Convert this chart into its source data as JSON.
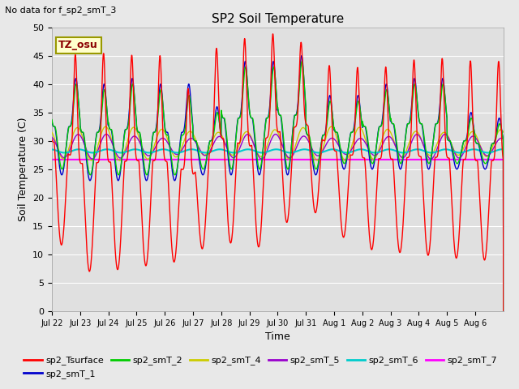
{
  "title": "SP2 Soil Temperature",
  "subtitle": "No data for f_sp2_smT_3",
  "ylabel": "Soil Temperature (C)",
  "xlabel": "Time",
  "tz_label": "TZ_osu",
  "ylim": [
    0,
    50
  ],
  "yticks": [
    0,
    5,
    10,
    15,
    20,
    25,
    30,
    35,
    40,
    45,
    50
  ],
  "fig_bg_color": "#e8e8e8",
  "plot_bg_color": "#e0e0e0",
  "series": {
    "sp2_Tsurface": {
      "color": "#ff0000",
      "lw": 1.0
    },
    "sp2_smT_1": {
      "color": "#0000cc",
      "lw": 1.0
    },
    "sp2_smT_2": {
      "color": "#00cc00",
      "lw": 1.0
    },
    "sp2_smT_4": {
      "color": "#cccc00",
      "lw": 1.0
    },
    "sp2_smT_5": {
      "color": "#9900cc",
      "lw": 1.0
    },
    "sp2_smT_6": {
      "color": "#00cccc",
      "lw": 1.5
    },
    "sp2_smT_7": {
      "color": "#ff00ff",
      "lw": 1.5
    }
  },
  "n_days": 16,
  "x_tick_labels": [
    "Jul 22",
    "Jul 23",
    "Jul 24",
    "Jul 25",
    "Jul 26",
    "Jul 27",
    "Jul 28",
    "Jul 29",
    "Jul 30",
    "Jul 31",
    "Aug 1",
    "Aug 2",
    "Aug 3",
    "Aug 4",
    "Aug 5",
    "Aug 6"
  ]
}
